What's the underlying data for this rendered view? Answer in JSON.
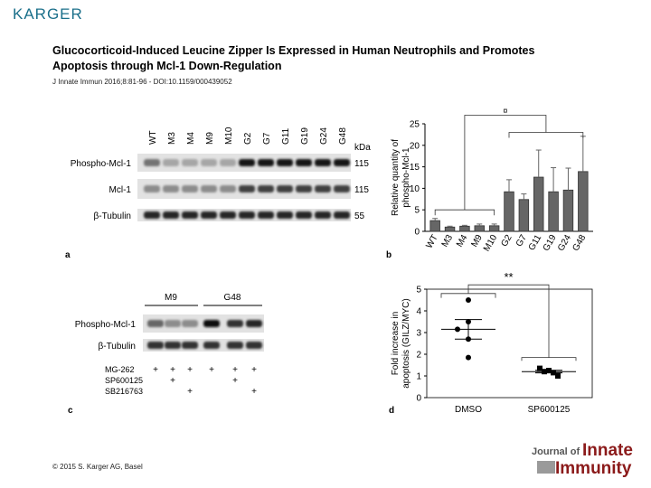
{
  "header": {
    "publisher": "KARGER",
    "title_line1": "Glucocorticoid-Induced Leucine Zipper Is Expressed in Human Neutrophils and Promotes",
    "title_line2": "Apoptosis through Mcl-1 Down-Regulation",
    "citation": "J Innate Immun 2016;8:81-96 - DOI:10.1159/000439052"
  },
  "footer": {
    "copyright": "© 2015 S. Karger AG, Basel",
    "journal_of": "Journal of",
    "journal_innate": "Innate",
    "journal_immunity": "Immunity"
  },
  "panel_a": {
    "letter": "a",
    "lanes": [
      "WT",
      "M3",
      "M4",
      "M9",
      "M10",
      "G2",
      "G7",
      "G11",
      "G19",
      "G24",
      "G48"
    ],
    "kda_label": "kDa",
    "rows": [
      {
        "label": "Phospho-Mcl-1",
        "kda": "115"
      },
      {
        "label": "Mcl-1",
        "kda": "115"
      },
      {
        "label": "β-Tubulin",
        "kda": "55"
      }
    ]
  },
  "panel_c": {
    "letter": "c",
    "group1": "M9",
    "group2": "G48",
    "rows": [
      "Phospho-Mcl-1",
      "β-Tubulin"
    ],
    "treatments": [
      {
        "label": "MG-262",
        "marks": [
          "+",
          "+",
          "+",
          "+",
          "+",
          "+"
        ]
      },
      {
        "label": "SP600125",
        "marks": [
          "",
          "+",
          "",
          "",
          "+",
          ""
        ]
      },
      {
        "label": "SB216763",
        "marks": [
          "",
          "",
          "+",
          "",
          "",
          "+"
        ]
      }
    ]
  },
  "chart_data": [
    {
      "panel": "b",
      "type": "bar",
      "ylabel": "Relative quantity of phospho-Mcl-1",
      "ylim": [
        0,
        25
      ],
      "yticks": [
        "0",
        "5",
        "10",
        "15",
        "20",
        "25"
      ],
      "categories": [
        "WT",
        "M3",
        "M4",
        "M9",
        "M10",
        "G2",
        "G7",
        "G11",
        "G19",
        "G24",
        "G48"
      ],
      "values": [
        2.5,
        1.0,
        1.2,
        1.3,
        1.3,
        9.2,
        7.4,
        12.6,
        9.2,
        9.6,
        13.9
      ],
      "errors": [
        0.5,
        0.2,
        0.2,
        0.4,
        0.4,
        2.8,
        1.3,
        6.3,
        5.6,
        5.1,
        8.2
      ],
      "color": "#666666",
      "significance": "¤"
    },
    {
      "panel": "d",
      "type": "scatter",
      "ylabel": "Fold increase in apoptosis (GILZ/MYC)",
      "ylim": [
        0,
        5
      ],
      "yticks": [
        "0",
        "1",
        "2",
        "3",
        "4",
        "5"
      ],
      "categories": [
        "DMSO",
        "SP600125"
      ],
      "points": [
        {
          "category": "DMSO",
          "values": [
            4.5,
            3.5,
            3.15,
            2.7,
            1.85
          ],
          "marker": "circle"
        },
        {
          "category": "SP600125",
          "values": [
            1.35,
            1.25,
            1.2,
            1.15,
            1.0
          ],
          "marker": "square"
        }
      ],
      "means": [
        3.15,
        1.2
      ],
      "sem": [
        0.45,
        0.06
      ],
      "significance": "**"
    }
  ]
}
